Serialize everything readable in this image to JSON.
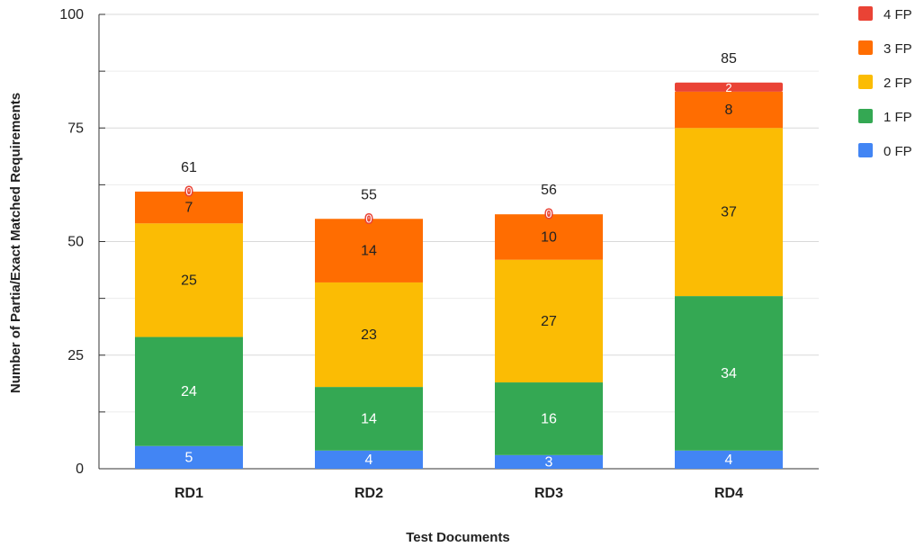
{
  "chart_data": {
    "type": "bar",
    "stacked": true,
    "xlabel": "Test Documents",
    "ylabel": "Number of Partia/Exact Matched Requirements",
    "categories": [
      "RD1",
      "RD2",
      "RD3",
      "RD4"
    ],
    "ylim": [
      0,
      100
    ],
    "yticks": [
      0,
      25,
      50,
      75,
      100
    ],
    "grid": true,
    "legend_position": "right",
    "series": [
      {
        "name": "0 FP",
        "color": "#4285f4",
        "label_color": "#ffffff",
        "values": [
          5,
          4,
          3,
          4
        ]
      },
      {
        "name": "1 FP",
        "color": "#34a853",
        "label_color": "#ffffff",
        "values": [
          24,
          14,
          16,
          34
        ]
      },
      {
        "name": "2 FP",
        "color": "#fbbc04",
        "label_color": "#222222",
        "values": [
          25,
          23,
          27,
          37
        ]
      },
      {
        "name": "3 FP",
        "color": "#ff6d01",
        "label_color": "#222222",
        "values": [
          7,
          14,
          10,
          8
        ]
      },
      {
        "name": "4 FP",
        "color": "#ea4335",
        "label_color": "#ffffff",
        "values": [
          0,
          0,
          0,
          2
        ]
      }
    ],
    "totals": [
      61,
      55,
      56,
      85
    ]
  }
}
